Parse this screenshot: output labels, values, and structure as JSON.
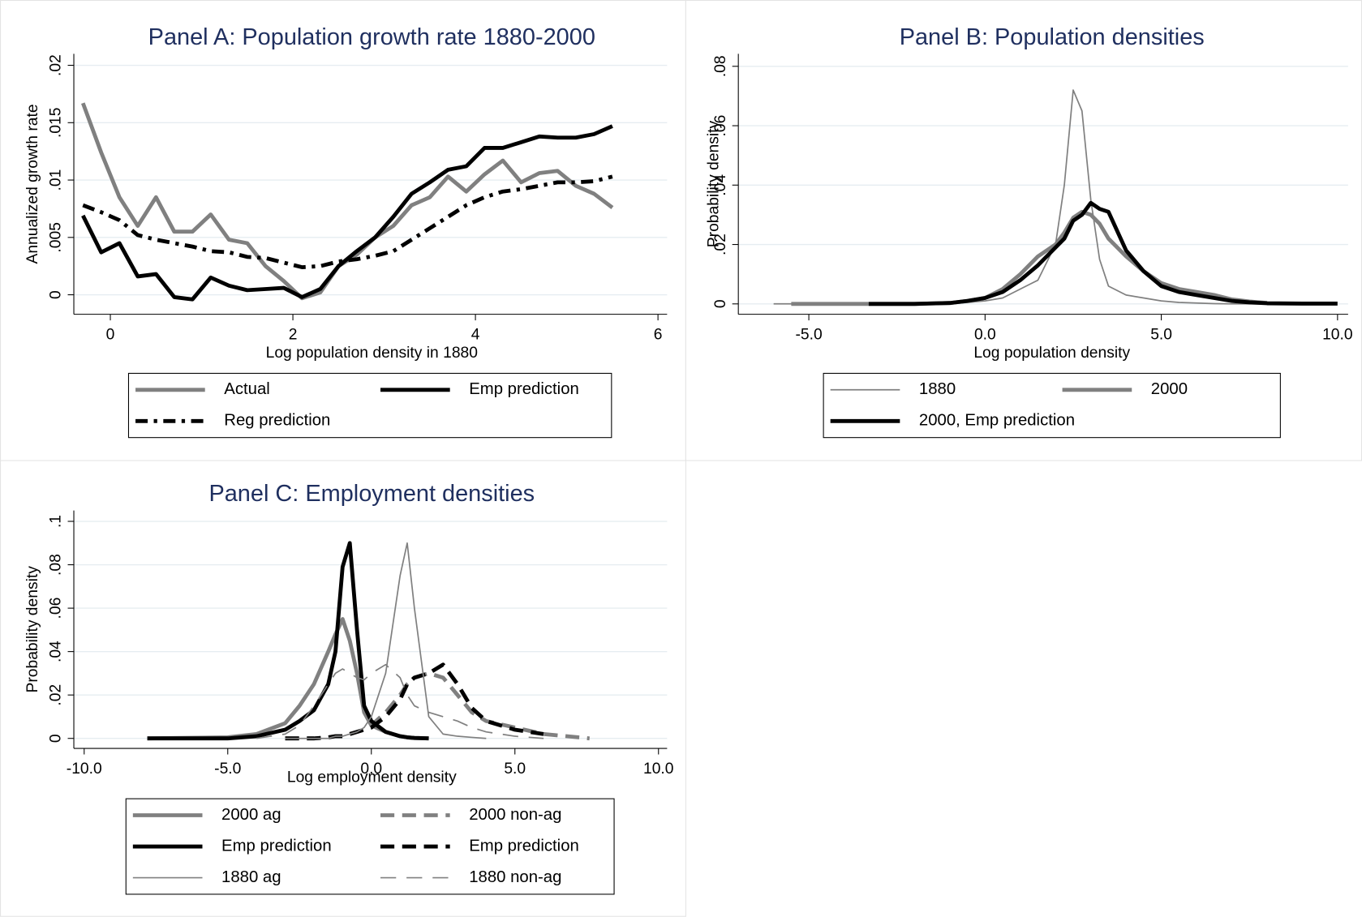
{
  "chart_data": [
    {
      "type": "line",
      "title": "Panel A: Population growth rate 1880-2000",
      "x_label": "Log population density in 1880",
      "y_label": "Annualized growth rate",
      "x": [
        -0.3,
        -0.1,
        0.1,
        0.3,
        0.5,
        0.7,
        0.9,
        1.1,
        1.3,
        1.5,
        1.7,
        1.9,
        2.1,
        2.3,
        2.5,
        2.7,
        2.9,
        3.1,
        3.3,
        3.5,
        3.7,
        3.9,
        4.1,
        4.3,
        4.5,
        4.7,
        4.9,
        5.1,
        5.3,
        5.5
      ],
      "series": [
        {
          "name": "Actual",
          "color": "#808080",
          "weight": "thick",
          "dash": "solid",
          "values": [
            0.0167,
            0.0124,
            0.0085,
            0.006,
            0.0085,
            0.0055,
            0.0055,
            0.007,
            0.0048,
            0.0045,
            0.0025,
            0.0012,
            -0.0003,
            0.0002,
            0.0025,
            0.0035,
            0.005,
            0.006,
            0.0078,
            0.0085,
            0.0103,
            0.009,
            0.0105,
            0.0117,
            0.0098,
            0.0106,
            0.0108,
            0.0095,
            0.0088,
            0.0076
          ]
        },
        {
          "name": "Emp prediction",
          "color": "#000000",
          "weight": "thick",
          "dash": "solid",
          "values": [
            0.0069,
            0.0037,
            0.0045,
            0.0016,
            0.0018,
            -0.0002,
            -0.0004,
            0.0015,
            0.0008,
            0.0004,
            0.0005,
            0.0006,
            -0.0002,
            0.0005,
            0.0025,
            0.0038,
            0.005,
            0.0068,
            0.0088,
            0.0098,
            0.0109,
            0.0112,
            0.0128,
            0.0128,
            0.0133,
            0.0138,
            0.0137,
            0.0137,
            0.014,
            0.0147
          ]
        },
        {
          "name": "Reg prediction",
          "color": "#000000",
          "weight": "thick",
          "dash": "dashdot",
          "values": [
            0.0078,
            0.0072,
            0.0065,
            0.0052,
            0.0048,
            0.0045,
            0.0042,
            0.0038,
            0.0037,
            0.0033,
            0.0032,
            0.0028,
            0.0024,
            0.0025,
            0.0029,
            0.0031,
            0.0034,
            0.0038,
            0.0048,
            0.0058,
            0.0068,
            0.0078,
            0.0085,
            0.009,
            0.0092,
            0.0095,
            0.0098,
            0.0098,
            0.0099,
            0.0103
          ]
        }
      ],
      "xlim": [
        -0.4,
        6.1
      ],
      "ylim": [
        -0.0017,
        0.021
      ],
      "xticks": [
        0,
        2,
        4,
        6
      ],
      "yticks": [
        0,
        {
          "value": 0.005,
          "label": ".005"
        },
        {
          "value": 0.01,
          "label": ".01"
        },
        {
          "value": 0.015,
          "label": ".015"
        },
        {
          "value": 0.02,
          "label": ".02"
        }
      ],
      "grid": true,
      "legend": "bottom"
    },
    {
      "type": "line",
      "title": "Panel B: Population densities",
      "x_label": "Log population density",
      "y_label": "Probability density",
      "x": [
        -6,
        -5.5,
        -3.3,
        -2,
        -1,
        -0.5,
        0,
        0.5,
        1,
        1.5,
        2,
        2.25,
        2.5,
        2.75,
        3,
        3.25,
        3.5,
        4,
        4.5,
        5,
        5.5,
        6,
        6.5,
        7,
        7.5,
        8,
        9,
        10
      ],
      "series": [
        {
          "name": "1880",
          "color": "#808080",
          "weight": "thin",
          "dash": "solid",
          "values": [
            0,
            0,
            0,
            0,
            0,
            0.0005,
            0.001,
            0.002,
            0.005,
            0.008,
            0.02,
            0.04,
            0.072,
            0.065,
            0.035,
            0.015,
            0.006,
            0.003,
            0.002,
            0.001,
            0.0005,
            0.0003,
            0.0001,
            0,
            0,
            0,
            null,
            null
          ]
        },
        {
          "name": "2000",
          "color": "#808080",
          "weight": "thick",
          "dash": "solid",
          "values": [
            null,
            0,
            0,
            0,
            0.0003,
            0.001,
            0.002,
            0.005,
            0.01,
            0.016,
            0.02,
            0.024,
            0.029,
            0.031,
            0.03,
            0.027,
            0.022,
            0.016,
            0.011,
            0.007,
            0.005,
            0.004,
            0.003,
            0.0015,
            0.0008,
            0.0003,
            null,
            null
          ]
        },
        {
          "name": "2000, Emp prediction",
          "color": "#000000",
          "weight": "thick",
          "dash": "solid",
          "values": [
            null,
            null,
            0,
            0,
            0.0003,
            0.001,
            0.002,
            0.004,
            0.008,
            0.013,
            0.019,
            0.022,
            0.028,
            0.03,
            0.034,
            0.032,
            0.031,
            0.018,
            0.011,
            0.006,
            0.004,
            0.003,
            0.002,
            0.001,
            0.0005,
            0.0002,
            0.0001,
            0.0001
          ]
        }
      ],
      "xlim": [
        -7,
        10.3
      ],
      "ylim": [
        -0.0035,
        0.0842
      ],
      "xticks": [
        {
          "value": -5,
          "label": "-5.0"
        },
        {
          "value": 0,
          "label": "0.0"
        },
        {
          "value": 5,
          "label": "5.0"
        },
        {
          "value": 10,
          "label": "10.0"
        }
      ],
      "yticks": [
        0,
        {
          "value": 0.02,
          "label": ".02"
        },
        {
          "value": 0.04,
          "label": ".04"
        },
        {
          "value": 0.06,
          "label": ".06"
        },
        {
          "value": 0.08,
          "label": ".08"
        }
      ],
      "grid": true,
      "legend": "bottom"
    },
    {
      "type": "line",
      "title": "Panel C: Employment densities",
      "x_label": "Log employment density",
      "y_label": "Probability density",
      "x": [
        -7.8,
        -5,
        -4,
        -3,
        -2.5,
        -2,
        -1.5,
        -1.25,
        -1,
        -0.75,
        -0.5,
        -0.25,
        0,
        0.5,
        1,
        1.25,
        1.5,
        2,
        2.5,
        3,
        3.5,
        4,
        5,
        6,
        7.6
      ],
      "series": [
        {
          "name": "2000 ag",
          "color": "#808080",
          "weight": "thick",
          "dash": "solid",
          "values": [
            0,
            0.0005,
            0.002,
            0.007,
            0.015,
            0.025,
            0.04,
            0.048,
            0.055,
            0.045,
            0.03,
            0.012,
            0.006,
            0.003,
            0.001,
            0.0005,
            0.0002,
            0,
            null,
            null,
            null,
            null,
            null,
            null,
            null
          ]
        },
        {
          "name": "2000 non-ag",
          "color": "#808080",
          "weight": "thick",
          "dash": "dashed",
          "values": [
            null,
            null,
            null,
            0,
            0,
            0,
            0.0005,
            0.001,
            0.001,
            0.002,
            0.003,
            0.004,
            0.006,
            0.012,
            0.02,
            0.025,
            0.028,
            0.03,
            0.028,
            0.02,
            0.012,
            0.008,
            0.005,
            0.002,
            0
          ]
        },
        {
          "name": "Emp prediction",
          "color": "#000000",
          "weight": "thick",
          "dash": "solid",
          "values": [
            0,
            0,
            0.001,
            0.004,
            0.008,
            0.013,
            0.025,
            0.04,
            0.079,
            0.09,
            0.05,
            0.015,
            0.008,
            0.003,
            0.001,
            0.0005,
            0.0002,
            0,
            null,
            null,
            null,
            null,
            null,
            null,
            null
          ]
        },
        {
          "name": "Emp prediction",
          "color": "#000000",
          "weight": "thick",
          "dash": "dashed",
          "values": [
            null,
            null,
            null,
            0,
            0,
            0,
            0.0005,
            0.001,
            0.001,
            0.002,
            0.003,
            0.004,
            0.005,
            0.01,
            0.018,
            0.025,
            0.028,
            0.03,
            0.034,
            0.025,
            0.014,
            0.008,
            0.004,
            0.002,
            null
          ]
        },
        {
          "name": "1880 ag",
          "color": "#808080",
          "weight": "thin",
          "dash": "solid",
          "values": [
            null,
            null,
            null,
            0,
            0,
            0,
            0,
            0.001,
            0.001,
            0.002,
            0.003,
            0.005,
            0.01,
            0.03,
            0.075,
            0.09,
            0.06,
            0.01,
            0.002,
            0.001,
            0.0005,
            0,
            null,
            null,
            null
          ]
        },
        {
          "name": "1880 non-ag",
          "color": "#808080",
          "weight": "thin",
          "dash": "dashed",
          "values": [
            null,
            null,
            0,
            0.002,
            0.006,
            0.015,
            0.025,
            0.03,
            0.032,
            0.03,
            0.028,
            0.027,
            0.03,
            0.034,
            0.028,
            0.02,
            0.015,
            0.012,
            0.01,
            0.008,
            0.005,
            0.003,
            0.001,
            0,
            null
          ]
        }
      ],
      "xlim": [
        -10.36,
        10.3
      ],
      "ylim": [
        -0.0046,
        0.105
      ],
      "xticks": [
        {
          "value": -10,
          "label": "-10.0"
        },
        {
          "value": -5,
          "label": "-5.0"
        },
        {
          "value": 0,
          "label": "0.0"
        },
        {
          "value": 5,
          "label": "5.0"
        },
        {
          "value": 10,
          "label": "10.0"
        }
      ],
      "yticks": [
        0,
        {
          "value": 0.02,
          "label": ".02"
        },
        {
          "value": 0.04,
          "label": ".04"
        },
        {
          "value": 0.06,
          "label": ".06"
        },
        {
          "value": 0.08,
          "label": ".08"
        },
        {
          "value": 0.1,
          "label": ".1"
        }
      ],
      "grid": true,
      "legend": "bottom"
    }
  ]
}
